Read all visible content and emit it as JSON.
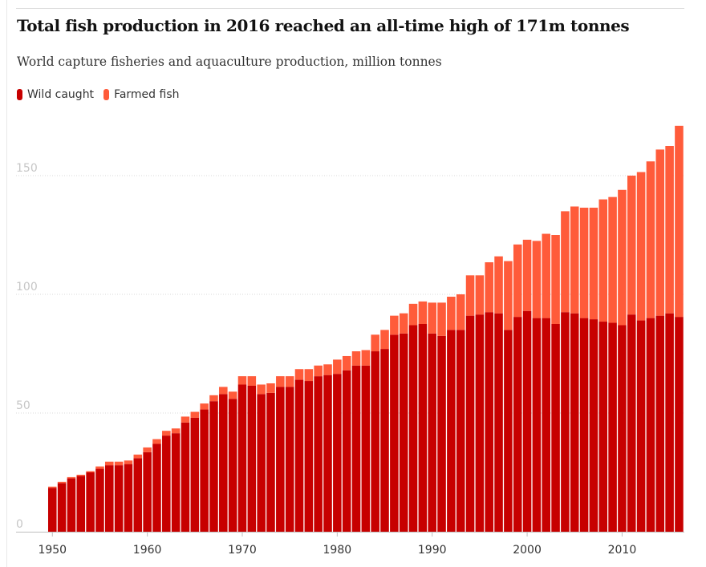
{
  "title": "Total fish production in 2016 reached an all-time high of 171m tonnes",
  "subtitle": "World capture fisheries and aquaculture production, million tonnes",
  "colors": {
    "wild": "#c70000",
    "farmed": "#ff5b3a",
    "grid": "#d8d8d8",
    "axis_text": "#333333",
    "y_tick_text": "#c6c6c6"
  },
  "chart_data": {
    "type": "bar",
    "stacked": true,
    "title": "Total fish production in 2016 reached an all-time high of 171m tonnes",
    "subtitle": "World capture fisheries and aquaculture production, million tonnes",
    "xlabel": "",
    "ylabel": "",
    "ylim": [
      0,
      171
    ],
    "y_ticks": [
      0,
      50,
      100,
      150
    ],
    "x_ticks": [
      1950,
      1960,
      1970,
      1980,
      1990,
      2000,
      2010
    ],
    "grid": true,
    "legend_position": "top-left",
    "categories": [
      1950,
      1951,
      1952,
      1953,
      1954,
      1955,
      1956,
      1957,
      1958,
      1959,
      1960,
      1961,
      1962,
      1963,
      1964,
      1965,
      1966,
      1967,
      1968,
      1969,
      1970,
      1971,
      1972,
      1973,
      1974,
      1975,
      1976,
      1977,
      1978,
      1979,
      1980,
      1981,
      1982,
      1983,
      1984,
      1985,
      1986,
      1987,
      1988,
      1989,
      1990,
      1991,
      1992,
      1993,
      1994,
      1995,
      1996,
      1997,
      1998,
      1999,
      2000,
      2001,
      2002,
      2003,
      2004,
      2005,
      2006,
      2007,
      2008,
      2009,
      2010,
      2011,
      2012,
      2013,
      2014,
      2015,
      2016
    ],
    "series": [
      {
        "name": "Wild caught",
        "values": [
          18.5,
          20.5,
          22.5,
          23.5,
          25.0,
          26.5,
          28.0,
          28.0,
          28.5,
          31.0,
          33.5,
          37.0,
          40.5,
          41.5,
          46.0,
          48.0,
          51.5,
          55.0,
          58.0,
          56.0,
          62.0,
          61.5,
          58.0,
          58.5,
          61.0,
          61.0,
          64.0,
          63.5,
          65.5,
          66.0,
          66.5,
          68.0,
          70.0,
          70.0,
          76.0,
          77.0,
          83.0,
          83.5,
          87.0,
          87.5,
          83.5,
          82.5,
          85.0,
          85.0,
          91.0,
          91.5,
          92.5,
          92.0,
          85.0,
          90.5,
          93.0,
          90.0,
          90.0,
          87.5,
          92.5,
          92.0,
          90.0,
          89.5,
          88.5,
          88.0,
          87.0,
          91.5,
          89.0,
          90.0,
          91.0,
          92.0,
          90.5
        ]
      },
      {
        "name": "Farmed fish",
        "values": [
          0.5,
          0.5,
          0.5,
          0.5,
          0.5,
          1.0,
          1.5,
          1.5,
          1.5,
          1.5,
          2.0,
          2.0,
          2.0,
          2.0,
          2.5,
          2.5,
          2.5,
          2.5,
          3.0,
          3.0,
          3.5,
          4.0,
          4.0,
          4.0,
          4.5,
          4.5,
          4.5,
          5.0,
          4.5,
          4.5,
          6.0,
          6.0,
          6.0,
          6.5,
          7.0,
          8.0,
          8.0,
          8.5,
          9.0,
          9.5,
          13.0,
          14.0,
          14.0,
          15.0,
          17.0,
          16.5,
          21.0,
          24.0,
          29.0,
          30.5,
          30.0,
          32.5,
          35.5,
          37.5,
          42.5,
          45.0,
          46.5,
          47.0,
          51.5,
          53.0,
          57.0,
          58.5,
          62.5,
          66.0,
          70.0,
          70.5,
          80.5
        ]
      }
    ]
  }
}
